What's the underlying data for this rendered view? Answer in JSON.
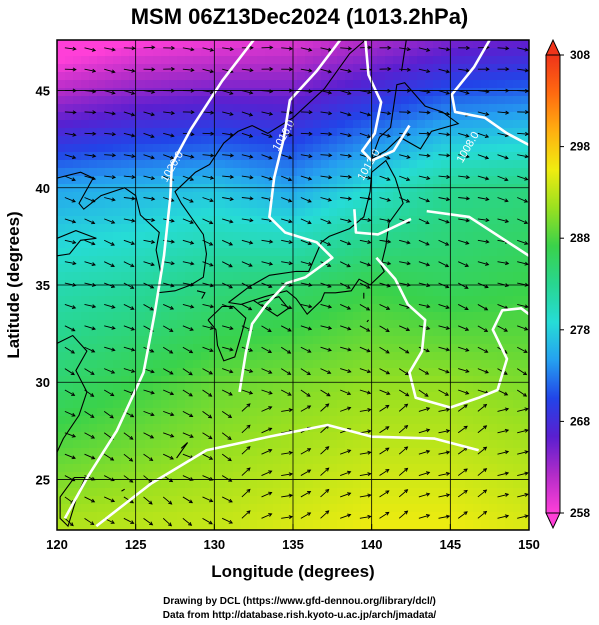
{
  "title": "MSM 06Z13Dec2024 (1013.2hPa)",
  "chart_data": {
    "type": "heatmap",
    "xlabel": "Longitude (degrees)",
    "ylabel": "Latitude  (degrees)",
    "xlim": [
      120,
      150
    ],
    "ylim": [
      22.4,
      47.6
    ],
    "xticks": [
      "120",
      "125",
      "130",
      "135",
      "140",
      "145",
      "150"
    ],
    "yticks": [
      "25",
      "30",
      "35",
      "40",
      "45"
    ],
    "colorbar": {
      "range": [
        258,
        308
      ],
      "ticks": [
        "258",
        "268",
        "278",
        "288",
        "298",
        "308"
      ],
      "colors": [
        "#ff3fd8",
        "#b22cc8",
        "#5a1fd0",
        "#2244e8",
        "#25a0f0",
        "#26dcd6",
        "#28d690",
        "#3ad24a",
        "#9ae020",
        "#f0ec10",
        "#ffb010",
        "#ff6a10",
        "#f0341a"
      ]
    },
    "temperature_field_K": {
      "lon": [
        120,
        125,
        130,
        135,
        140,
        145,
        150
      ],
      "lat": [
        25,
        30,
        35,
        40,
        45
      ],
      "values": [
        [
          290,
          291,
          292,
          293,
          294,
          294,
          293
        ],
        [
          285,
          287,
          289,
          290,
          291,
          291,
          290
        ],
        [
          281,
          282,
          284,
          285,
          287,
          286,
          287
        ],
        [
          275,
          276,
          277,
          275,
          279,
          283,
          284
        ],
        [
          262,
          264,
          265,
          265,
          268,
          271,
          272
        ]
      ]
    },
    "isobars_hPa": [
      {
        "label": "1020.0",
        "lon": 127.5,
        "lat": 41.0
      },
      {
        "label": "1016.0",
        "lon": 134.6,
        "lat": 42.6
      },
      {
        "label": "1012.0",
        "lon": 140.0,
        "lat": 41.1
      },
      {
        "label": "1008.0",
        "lon": 146.3,
        "lat": 42.0
      }
    ],
    "grid": true
  },
  "credits": {
    "line1": "Drawing by DCL (https://www.gfd-dennou.org/library/dcl/)",
    "line2": "Data from http://database.rish.kyoto-u.ac.jp/arch/jmadata/"
  },
  "colors": {
    "coast": "#000000",
    "isobar": "#ffffff",
    "grid": "#000000"
  }
}
